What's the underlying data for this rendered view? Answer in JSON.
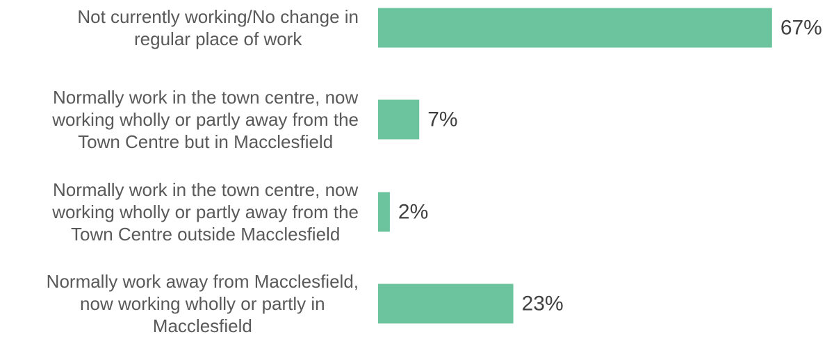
{
  "chart_data": {
    "type": "bar",
    "orientation": "horizontal",
    "categories": [
      [
        "Not currently working/No change in",
        "regular place of work"
      ],
      [
        "Normally work in the town centre, now",
        "working wholly or partly away from the",
        "Town Centre but in Macclesfield"
      ],
      [
        "Normally work in the town centre, now",
        "working wholly or partly away from the",
        "Town Centre outside Macclesfield"
      ],
      [
        "Normally work away from Macclesfield,",
        "now working wholly or partly in",
        "Macclesfield"
      ]
    ],
    "values": [
      67,
      7,
      2,
      23
    ],
    "value_labels": [
      "67%",
      "7%",
      "2%",
      "23%"
    ],
    "bar_color": "#6CC49E",
    "xlim": [
      0,
      100
    ],
    "grid": false,
    "legend": "none"
  }
}
